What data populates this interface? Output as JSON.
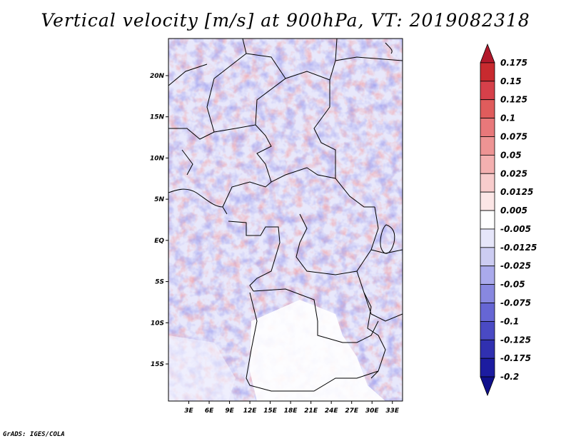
{
  "title": "Vertical velocity [m/s] at 900hPa, VT: 2019082318",
  "credit": "GrADS: IGES/COLA",
  "map": {
    "lon_range": [
      0,
      34.5
    ],
    "lat_range": [
      -19.5,
      24.5
    ],
    "lat_ticks": [
      {
        "lat": 20,
        "label": "20N"
      },
      {
        "lat": 15,
        "label": "15N"
      },
      {
        "lat": 10,
        "label": "10N"
      },
      {
        "lat": 5,
        "label": "5N"
      },
      {
        "lat": 0,
        "label": "EQ"
      },
      {
        "lat": -5,
        "label": "5S"
      },
      {
        "lat": -10,
        "label": "10S"
      },
      {
        "lat": -15,
        "label": "15S"
      }
    ],
    "lon_ticks": [
      {
        "lon": 3,
        "label": "3E"
      },
      {
        "lon": 6,
        "label": "6E"
      },
      {
        "lon": 9,
        "label": "9E"
      },
      {
        "lon": 12,
        "label": "12E"
      },
      {
        "lon": 15,
        "label": "15E"
      },
      {
        "lon": 18,
        "label": "18E"
      },
      {
        "lon": 21,
        "label": "21E"
      },
      {
        "lon": 24,
        "label": "24E"
      },
      {
        "lon": 27,
        "label": "27E"
      },
      {
        "lon": 30,
        "label": "30E"
      },
      {
        "lon": 33,
        "label": "33E"
      }
    ]
  },
  "colorbar": {
    "levels": [
      "0.175",
      "0.15",
      "0.125",
      "0.1",
      "0.075",
      "0.05",
      "0.025",
      "0.0125",
      "0.005",
      "-0.005",
      "-0.0125",
      "-0.025",
      "-0.05",
      "-0.075",
      "-0.1",
      "-0.125",
      "-0.175",
      "-0.2"
    ],
    "colors": [
      "#b2182b",
      "#c82a2f",
      "#d6404a",
      "#e05c5c",
      "#e8787a",
      "#ee9494",
      "#f4b0b0",
      "#f8cccc",
      "#fce6e6",
      "#ffffff",
      "#e6e6fa",
      "#ccccf2",
      "#aaaaec",
      "#8888e0",
      "#6666d4",
      "#4a4ac4",
      "#3030b0",
      "#1c1ca0",
      "#10108c"
    ]
  }
}
